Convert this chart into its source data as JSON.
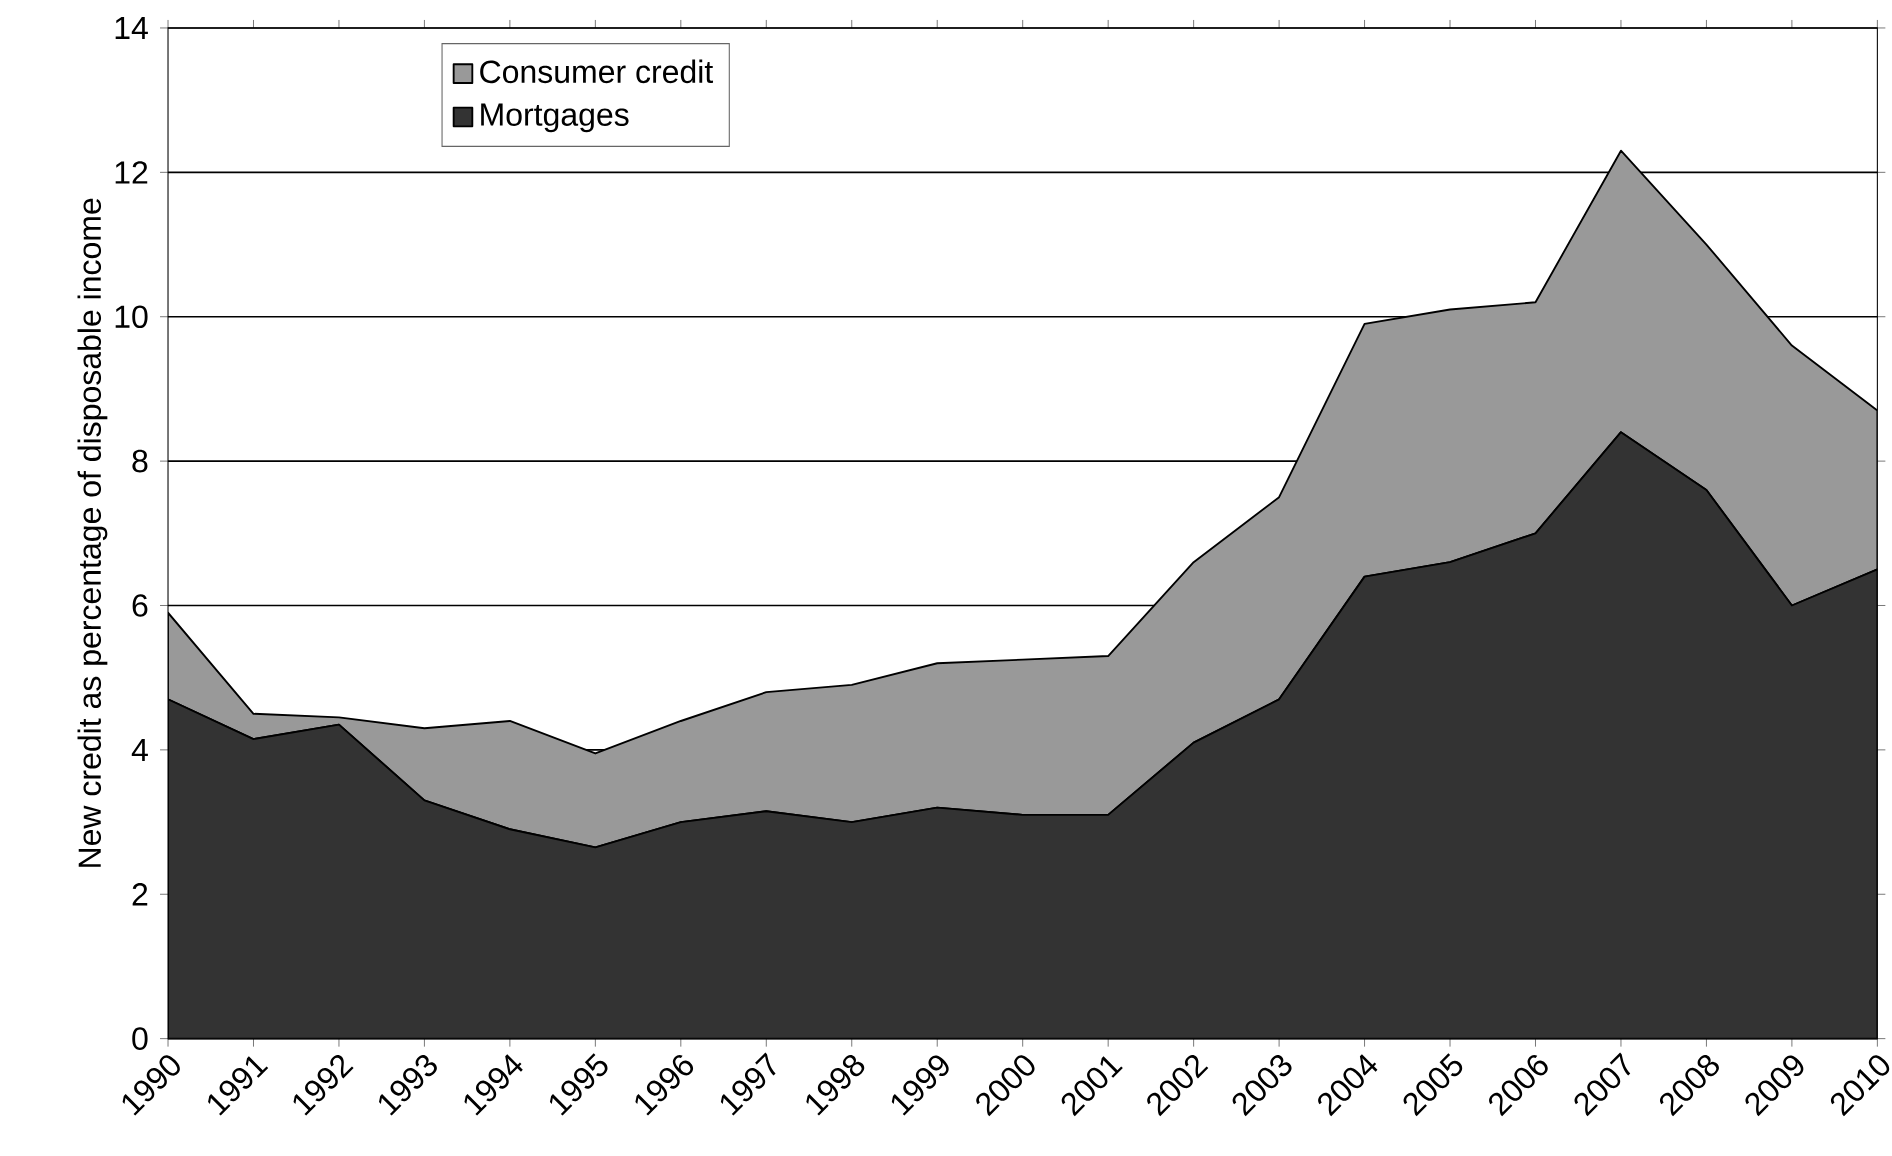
{
  "chart_data": {
    "type": "area",
    "stacked": true,
    "ylabel": "New credit as percentage of disposable income",
    "categories": [
      "1990",
      "1991",
      "1992",
      "1993",
      "1994",
      "1995",
      "1996",
      "1997",
      "1998",
      "1999",
      "2000",
      "2001",
      "2002",
      "2003",
      "2004",
      "2005",
      "2006",
      "2007",
      "2008",
      "2009",
      "2010"
    ],
    "series": [
      {
        "name": "Mortgages",
        "color": "#333333",
        "values": [
          4.7,
          4.15,
          4.35,
          3.3,
          2.9,
          2.65,
          3.0,
          3.15,
          3.0,
          3.2,
          3.1,
          3.1,
          4.1,
          4.7,
          6.4,
          6.6,
          7.0,
          8.4,
          7.6,
          6.0,
          6.5
        ]
      },
      {
        "name": "Consumer credit",
        "color": "#999999",
        "values": [
          1.2,
          0.35,
          0.1,
          1.0,
          1.5,
          1.3,
          1.4,
          1.65,
          1.9,
          2.0,
          2.15,
          2.2,
          2.5,
          2.8,
          3.5,
          3.5,
          3.2,
          3.9,
          3.4,
          3.6,
          2.2
        ]
      }
    ],
    "ylim": [
      0,
      14
    ],
    "yticks": [
      0,
      2,
      4,
      6,
      8,
      10,
      12,
      14
    ],
    "grid": "y",
    "legend": "top left"
  }
}
